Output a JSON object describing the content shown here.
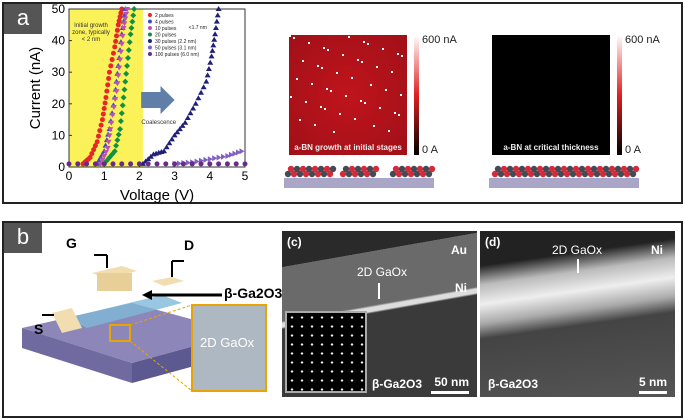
{
  "panel_a": {
    "label": "a",
    "legend": [
      "2 pulses",
      "4 pulses",
      "10 pulses",
      "20 pulses",
      "30 pulses (2.2 nm)",
      "50 pulses (3.1 nm)",
      "100 pulses (6.0 nm)"
    ],
    "legend_bracket": "<1.7 nm",
    "zone_text": [
      "Initial growth",
      "zone, typically",
      "< 2 nm"
    ],
    "arrow_text": "Coalescence",
    "afm1": {
      "caption": "a-BN growth at initial stages",
      "cb_max": "600 nA",
      "cb_min": "0 A"
    },
    "afm2": {
      "caption": "a-BN at critical thickness",
      "cb_max": "600 nA",
      "cb_min": "0 A"
    }
  },
  "chart_data": {
    "type": "scatter",
    "xlabel": "Voltage (V)",
    "ylabel": "Current (nA)",
    "xlim": [
      0,
      5
    ],
    "ylim": [
      0,
      50
    ],
    "xticks": [
      "0",
      "1",
      "2",
      "3",
      "4",
      "5"
    ],
    "yticks": [
      "0",
      "10",
      "20",
      "30",
      "40",
      "50"
    ],
    "series": [
      {
        "name": "2 pulses",
        "color": "#e8262a",
        "marker": "circle",
        "points": [
          [
            0.4,
            1
          ],
          [
            0.6,
            3
          ],
          [
            0.8,
            8
          ],
          [
            0.95,
            15
          ],
          [
            1.05,
            22
          ],
          [
            1.15,
            30
          ],
          [
            1.3,
            38
          ],
          [
            1.4,
            45
          ],
          [
            1.5,
            50
          ]
        ]
      },
      {
        "name": "4 pulses",
        "color": "#3b4fc4",
        "marker": "triangle",
        "points": [
          [
            0.8,
            1
          ],
          [
            1.0,
            5
          ],
          [
            1.15,
            12
          ],
          [
            1.3,
            22
          ],
          [
            1.4,
            32
          ],
          [
            1.5,
            42
          ],
          [
            1.6,
            50
          ]
        ]
      },
      {
        "name": "10 pulses",
        "color": "#c050b0",
        "marker": "triangle-down",
        "points": [
          [
            0.9,
            1
          ],
          [
            1.1,
            6
          ],
          [
            1.2,
            14
          ],
          [
            1.35,
            24
          ],
          [
            1.45,
            34
          ],
          [
            1.55,
            44
          ],
          [
            1.65,
            50
          ]
        ]
      },
      {
        "name": "20 pulses",
        "color": "#109040",
        "marker": "diamond",
        "points": [
          [
            1.0,
            1
          ],
          [
            1.3,
            5
          ],
          [
            1.45,
            12
          ],
          [
            1.55,
            22
          ],
          [
            1.65,
            32
          ],
          [
            1.75,
            42
          ],
          [
            1.85,
            50
          ]
        ]
      },
      {
        "name": "30 pulses (2.2 nm)",
        "color": "#20207a",
        "marker": "triangle",
        "points": [
          [
            2.1,
            1
          ],
          [
            2.4,
            4
          ],
          [
            2.7,
            5
          ],
          [
            3.0,
            10
          ],
          [
            3.3,
            14
          ],
          [
            3.6,
            20
          ],
          [
            3.9,
            27
          ],
          [
            4.05,
            35
          ],
          [
            4.15,
            42
          ],
          [
            4.25,
            50
          ]
        ]
      },
      {
        "name": "50 pulses (3.1 nm)",
        "color": "#8060c0",
        "marker": "triangle-right",
        "points": [
          [
            3.0,
            1
          ],
          [
            3.5,
            1.5
          ],
          [
            4.0,
            2.5
          ],
          [
            4.5,
            3.5
          ],
          [
            4.9,
            5
          ]
        ]
      },
      {
        "name": "100 pulses (6.0 nm)",
        "color": "#6a2a8a",
        "marker": "circle",
        "points": [
          [
            0,
            1
          ],
          [
            1,
            1
          ],
          [
            2,
            1
          ],
          [
            3,
            1
          ],
          [
            4,
            1
          ],
          [
            5,
            1
          ]
        ]
      }
    ]
  },
  "panel_b": {
    "label": "b",
    "gate": "G",
    "drain": "D",
    "source": "S",
    "channel": "β-Ga2O3",
    "inset": "2D GaOx",
    "c": {
      "label": "(c)",
      "au": "Au",
      "ni": "Ni",
      "layer": "2D GaOx",
      "substrate": "β-Ga2O3",
      "scale": "50 nm"
    },
    "d": {
      "label": "(d)",
      "ni": "Ni",
      "layer": "2D GaOx",
      "substrate": "β-Ga2O3",
      "scale": "5 nm"
    }
  }
}
